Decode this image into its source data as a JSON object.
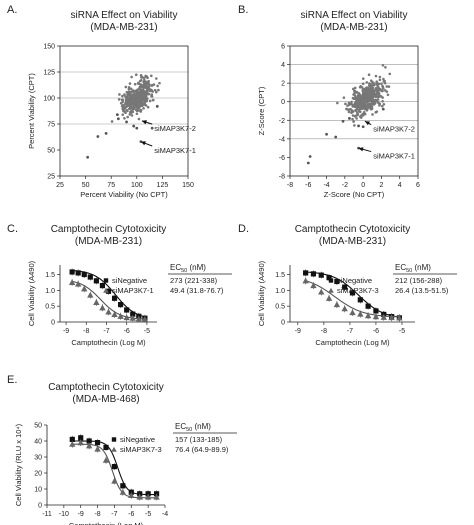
{
  "chart_data": [
    {
      "id": "A",
      "panel_label": "A.",
      "type": "scatter",
      "title": "siRNA Effect on Viability",
      "subtitle": "(MDA-MB-231)",
      "xlabel": "Percent Viability (No CPT)",
      "ylabel": "Percent Viability (CPT)",
      "xlim": [
        25,
        150
      ],
      "ylim": [
        25,
        150
      ],
      "xticks": [
        25,
        50,
        75,
        100,
        125,
        150
      ],
      "yticks": [
        25,
        50,
        75,
        100,
        125,
        150
      ],
      "hgrid": [
        75,
        100,
        125
      ],
      "cloud": {
        "center": [
          101,
          101
        ],
        "sd": [
          7,
          8
        ],
        "n": 420,
        "seed": 7,
        "rho": 0.5
      },
      "points": [
        [
          52,
          43
        ],
        [
          62,
          63
        ],
        [
          70,
          66
        ],
        [
          82,
          80
        ],
        [
          90,
          77
        ],
        [
          97,
          73
        ],
        [
          100,
          71
        ],
        [
          104,
          58
        ],
        [
          115,
          71
        ],
        [
          120,
          92
        ],
        [
          81,
          84
        ]
      ],
      "annotations": [
        {
          "text": "siMAP3K7-2",
          "point": [
            105,
            78
          ],
          "label": [
            117,
            71
          ]
        },
        {
          "text": "siMAP3K7-1",
          "point": [
            104,
            58
          ],
          "label": [
            117,
            50
          ]
        }
      ]
    },
    {
      "id": "B",
      "panel_label": "B.",
      "type": "scatter",
      "title": "siRNA Effect on Viability",
      "subtitle": "(MDA-MB-231)",
      "xlabel": "Z-Score (No CPT)",
      "ylabel": "Z-Score (CPT)",
      "xlim": [
        -8,
        6
      ],
      "ylim": [
        -8,
        6
      ],
      "xticks": [
        -8,
        -6,
        -4,
        -2,
        0,
        2,
        4,
        6
      ],
      "yticks": [
        -8,
        -6,
        -4,
        -2,
        0,
        2,
        4,
        6
      ],
      "hgrid": [
        -4,
        -2,
        0,
        2,
        4
      ],
      "cloud": {
        "center": [
          0.3,
          0.3
        ],
        "sd": [
          0.9,
          0.9
        ],
        "n": 420,
        "seed": 11,
        "rho": 0.5
      },
      "points": [
        [
          -6,
          -6.6
        ],
        [
          -5.8,
          -5.9
        ],
        [
          -4,
          -3.5
        ],
        [
          -3,
          -3.8
        ],
        [
          -2.2,
          -2.1
        ],
        [
          -1.5,
          -1.8
        ],
        [
          -0.5,
          -2.6
        ],
        [
          0,
          -2.7
        ],
        [
          -0.5,
          -5.0
        ],
        [
          2.2,
          -0.8
        ]
      ],
      "annotations": [
        {
          "text": "siMAP3K7-2",
          "point": [
            0.2,
            -2.1
          ],
          "label": [
            1.1,
            -2.9
          ]
        },
        {
          "text": "siMAP3K7-1",
          "point": [
            -0.5,
            -5.0
          ],
          "label": [
            1.1,
            -5.8
          ]
        }
      ]
    },
    {
      "id": "C",
      "panel_label": "C.",
      "type": "line",
      "title": "Camptothecin Cytotoxicity",
      "subtitle": "(MDA-MB-231)",
      "xlabel": "Camptothecin (Log M)",
      "ylabel": "Cell Viability (A490)",
      "xlim": [
        -9.3,
        -4.5
      ],
      "ylim": [
        0,
        1.8
      ],
      "xticks": [
        -9,
        -8,
        -7,
        -6,
        -5
      ],
      "yticks": [
        0,
        0.5,
        1.0,
        1.5
      ],
      "ytick_labels": [
        "0",
        "0.5",
        "1.0",
        "1.5"
      ],
      "ec50_header": "EC50 (nM)",
      "series": [
        {
          "name": "siNegative",
          "marker": "square",
          "ec50": "273 (221-338)",
          "x": [
            -8.7,
            -8.4,
            -8.1,
            -7.8,
            -7.5,
            -7.2,
            -6.9,
            -6.6,
            -6.3,
            -6.0,
            -5.7,
            -5.4,
            -5.1
          ],
          "y": [
            1.58,
            1.55,
            1.5,
            1.42,
            1.3,
            1.15,
            0.97,
            0.75,
            0.55,
            0.38,
            0.25,
            0.18,
            0.12
          ],
          "curve": {
            "top": 1.65,
            "bottom": 0.08,
            "logec50": -6.56,
            "hill": 0.85
          }
        },
        {
          "name": "siMAP3K7-1",
          "marker": "triangle",
          "ec50": "49.4 (31.8-76.7)",
          "x": [
            -8.7,
            -8.4,
            -8.1,
            -7.8,
            -7.5,
            -7.2,
            -6.9,
            -6.6,
            -6.3,
            -6.0,
            -5.7,
            -5.4,
            -5.1
          ],
          "y": [
            1.25,
            1.2,
            1.05,
            0.85,
            0.62,
            0.45,
            0.32,
            0.24,
            0.18,
            0.14,
            0.12,
            0.1,
            0.09
          ],
          "curve": {
            "top": 1.35,
            "bottom": 0.08,
            "logec50": -7.3,
            "hill": 0.9
          }
        }
      ]
    },
    {
      "id": "D",
      "panel_label": "D.",
      "type": "line",
      "title": "Camptothecin Cytotoxicity",
      "subtitle": "(MDA-MB-231)",
      "xlabel": "Camptothecin (Log M)",
      "ylabel": "Cell Viability (A490)",
      "xlim": [
        -9.3,
        -4.5
      ],
      "ylim": [
        0,
        1.8
      ],
      "xticks": [
        -9,
        -8,
        -7,
        -6,
        -5
      ],
      "yticks": [
        0,
        0.5,
        1.0,
        1.5
      ],
      "ytick_labels": [
        "0",
        "0.5",
        "1.0",
        "1.5"
      ],
      "ec50_header": "EC50 (nM)",
      "series": [
        {
          "name": "siNegative",
          "marker": "square",
          "ec50": "212 (156-288)",
          "x": [
            -8.7,
            -8.4,
            -8.1,
            -7.8,
            -7.5,
            -7.2,
            -6.9,
            -6.6,
            -6.3,
            -6.0,
            -5.7,
            -5.4,
            -5.1
          ],
          "y": [
            1.55,
            1.52,
            1.48,
            1.4,
            1.28,
            1.1,
            0.92,
            0.7,
            0.5,
            0.35,
            0.24,
            0.17,
            0.13
          ],
          "curve": {
            "top": 1.6,
            "bottom": 0.1,
            "logec50": -6.67,
            "hill": 0.9
          }
        },
        {
          "name": "siMAP3K7-3",
          "marker": "triangle",
          "ec50": "26.4 (13.5-51.5)",
          "x": [
            -8.7,
            -8.4,
            -8.1,
            -7.8,
            -7.5,
            -7.2,
            -6.9,
            -6.6,
            -6.3,
            -6.0,
            -5.7,
            -5.4,
            -5.1
          ],
          "y": [
            1.3,
            1.15,
            0.95,
            0.75,
            0.55,
            0.42,
            0.3,
            0.25,
            0.2,
            0.17,
            0.15,
            0.14,
            0.13
          ],
          "curve": {
            "top": 1.45,
            "bottom": 0.15,
            "logec50": -7.58,
            "hill": 0.8
          }
        }
      ]
    },
    {
      "id": "E",
      "panel_label": "E.",
      "type": "line",
      "title": "Camptothecin Cytotoxicity",
      "subtitle": "(MDA-MB-468)",
      "xlabel": "Camptothecin (Log M)",
      "ylabel": "Cell Viability (RLU x 10⁴)",
      "xlim": [
        -11,
        -4
      ],
      "ylim": [
        0,
        50
      ],
      "xticks": [
        -11,
        -10,
        -9,
        -8,
        -7,
        -6,
        -5,
        -4
      ],
      "yticks": [
        0,
        10,
        20,
        30,
        40,
        50
      ],
      "ec50_header": "EC50 (nM)",
      "series": [
        {
          "name": "siNegative",
          "marker": "square",
          "ec50": "157 (133-185)",
          "x": [
            -9.5,
            -9.0,
            -8.5,
            -8.0,
            -7.5,
            -7.0,
            -6.5,
            -6.0,
            -5.5,
            -5.0,
            -4.5
          ],
          "y": [
            41,
            42,
            40,
            39,
            36,
            24,
            12,
            8,
            7,
            7,
            7
          ],
          "curve": {
            "top": 40,
            "bottom": 6.5,
            "logec50": -6.8,
            "hill": 1.6
          }
        },
        {
          "name": "siMAP3K7-3",
          "marker": "triangle",
          "ec50": "76.4 (64.9-89.9)",
          "x": [
            -9.5,
            -9.0,
            -8.5,
            -8.0,
            -7.5,
            -7.0,
            -6.5,
            -6.0,
            -5.5,
            -5.0,
            -4.5
          ],
          "y": [
            38,
            39,
            37,
            35,
            28,
            15,
            8,
            6,
            5,
            5,
            5
          ],
          "curve": {
            "top": 38,
            "bottom": 4.5,
            "logec50": -7.12,
            "hill": 1.6
          }
        }
      ]
    }
  ]
}
